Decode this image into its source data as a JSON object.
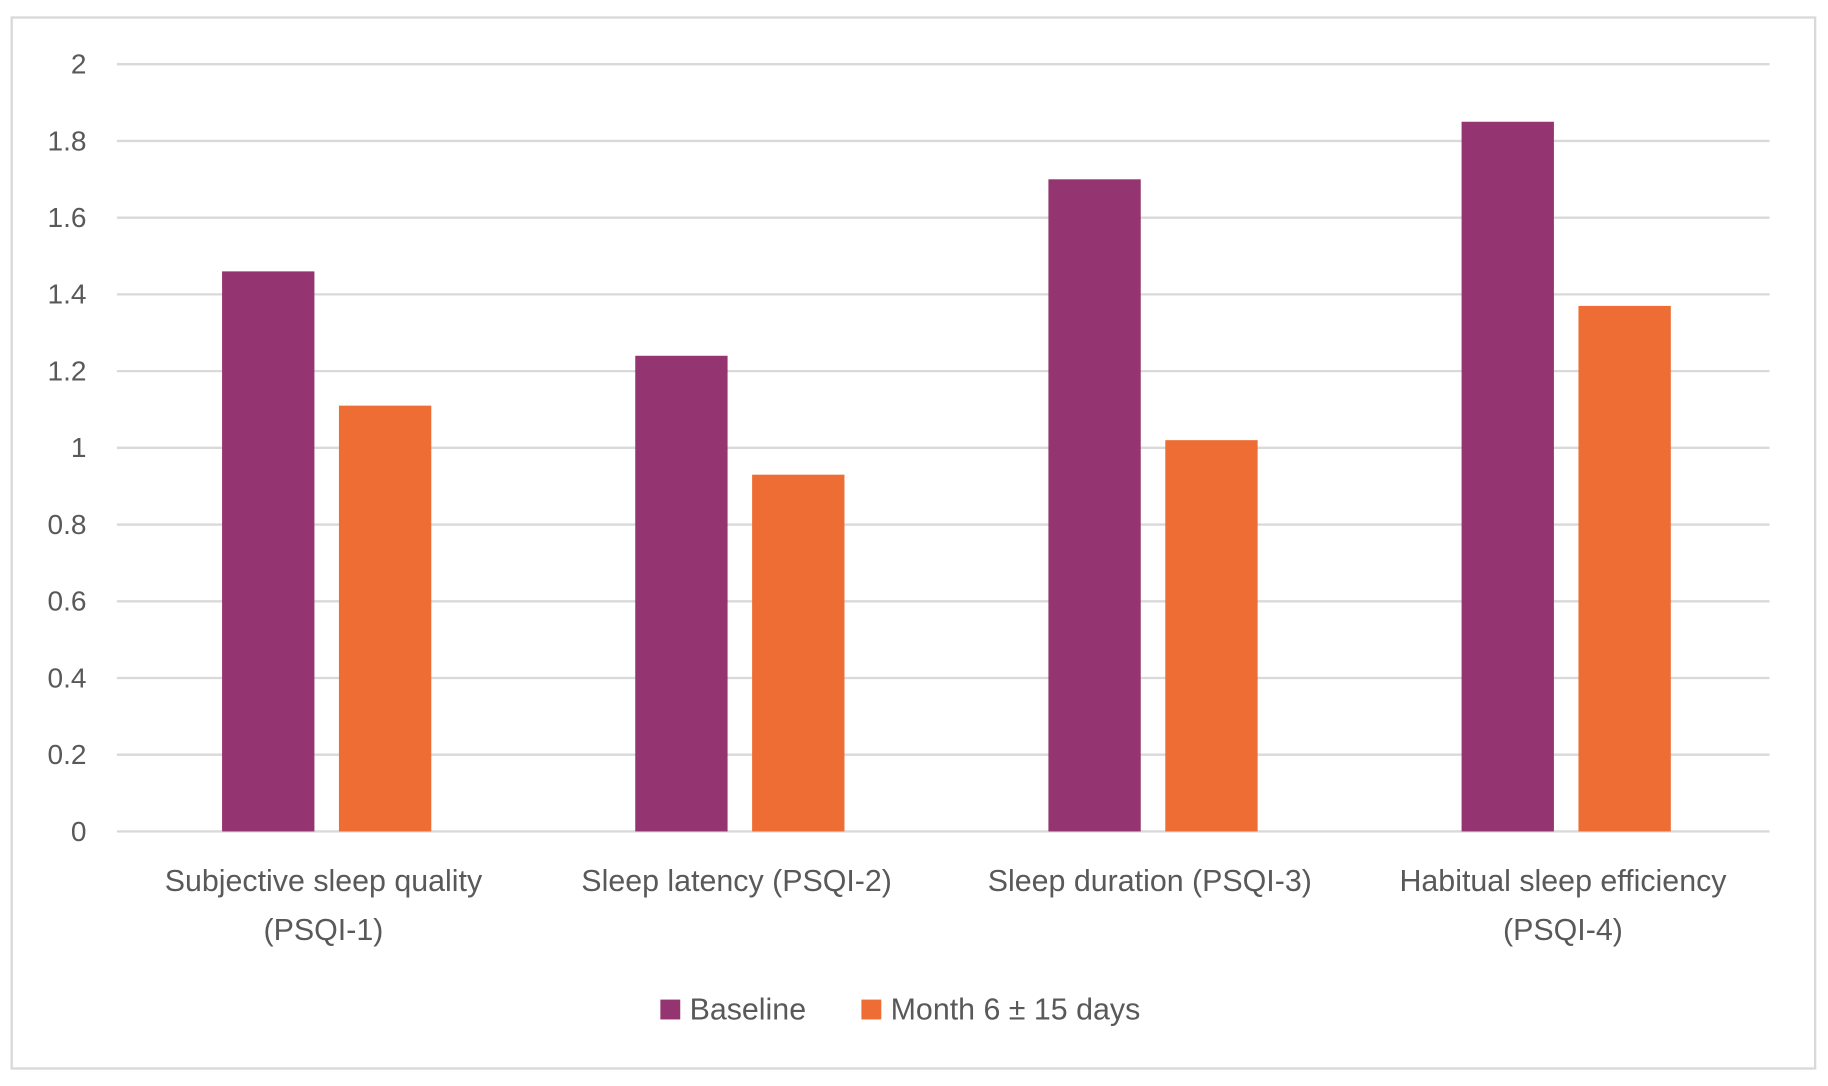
{
  "chart_data": {
    "type": "bar",
    "title": "",
    "xlabel": "",
    "ylabel": "",
    "ylim": [
      0,
      2
    ],
    "yticks": [
      "0",
      "0.2",
      "0.4",
      "0.6",
      "0.8",
      "1",
      "1.2",
      "1.4",
      "1.6",
      "1.8",
      "2"
    ],
    "grid": true,
    "legend_position": "bottom",
    "categories": [
      [
        "Subjective sleep quality",
        "(PSQI-1)"
      ],
      [
        "Sleep latency (PSQI-2)"
      ],
      [
        "Sleep duration (PSQI-3)"
      ],
      [
        "Habitual sleep efficiency",
        "(PSQI-4)"
      ]
    ],
    "series": [
      {
        "name": "Baseline",
        "color": "#943470",
        "values": [
          1.46,
          1.24,
          1.7,
          1.85
        ]
      },
      {
        "name": "Month 6 ± 15 days",
        "color": "#ED6D35",
        "values": [
          1.11,
          0.93,
          1.02,
          1.37
        ]
      }
    ]
  }
}
